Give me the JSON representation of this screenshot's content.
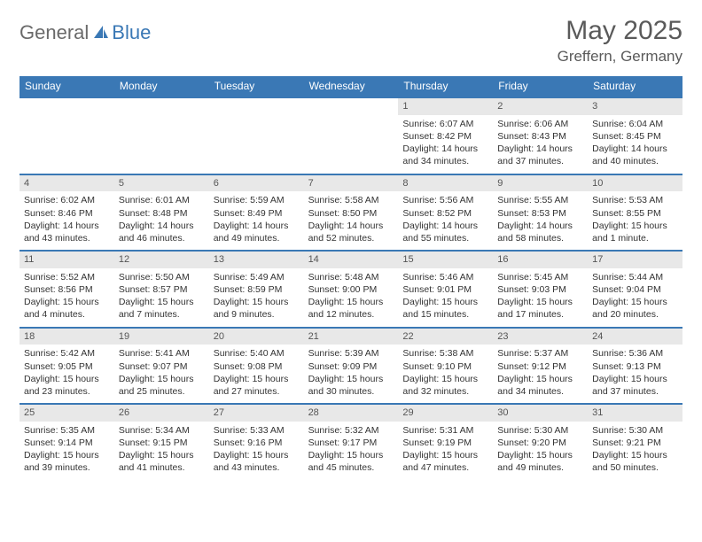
{
  "brand": {
    "part1": "General",
    "part2": "Blue"
  },
  "title": "May 2025",
  "location": "Greffern, Germany",
  "colors": {
    "header_bg": "#3a78b5",
    "header_text": "#ffffff",
    "daynum_bg": "#e8e8e8",
    "rule": "#3a78b5",
    "body_text": "#333333",
    "title_text": "#5a5a5a"
  },
  "typography": {
    "title_fontsize": 30,
    "location_fontsize": 17,
    "dayheader_fontsize": 12,
    "cell_fontsize": 10.5
  },
  "layout": {
    "columns": 7,
    "rows": 5
  },
  "day_names": [
    "Sunday",
    "Monday",
    "Tuesday",
    "Wednesday",
    "Thursday",
    "Friday",
    "Saturday"
  ],
  "weeks": [
    [
      null,
      null,
      null,
      null,
      {
        "n": "1",
        "sunrise": "Sunrise: 6:07 AM",
        "sunset": "Sunset: 8:42 PM",
        "daylight": "Daylight: 14 hours and 34 minutes."
      },
      {
        "n": "2",
        "sunrise": "Sunrise: 6:06 AM",
        "sunset": "Sunset: 8:43 PM",
        "daylight": "Daylight: 14 hours and 37 minutes."
      },
      {
        "n": "3",
        "sunrise": "Sunrise: 6:04 AM",
        "sunset": "Sunset: 8:45 PM",
        "daylight": "Daylight: 14 hours and 40 minutes."
      }
    ],
    [
      {
        "n": "4",
        "sunrise": "Sunrise: 6:02 AM",
        "sunset": "Sunset: 8:46 PM",
        "daylight": "Daylight: 14 hours and 43 minutes."
      },
      {
        "n": "5",
        "sunrise": "Sunrise: 6:01 AM",
        "sunset": "Sunset: 8:48 PM",
        "daylight": "Daylight: 14 hours and 46 minutes."
      },
      {
        "n": "6",
        "sunrise": "Sunrise: 5:59 AM",
        "sunset": "Sunset: 8:49 PM",
        "daylight": "Daylight: 14 hours and 49 minutes."
      },
      {
        "n": "7",
        "sunrise": "Sunrise: 5:58 AM",
        "sunset": "Sunset: 8:50 PM",
        "daylight": "Daylight: 14 hours and 52 minutes."
      },
      {
        "n": "8",
        "sunrise": "Sunrise: 5:56 AM",
        "sunset": "Sunset: 8:52 PM",
        "daylight": "Daylight: 14 hours and 55 minutes."
      },
      {
        "n": "9",
        "sunrise": "Sunrise: 5:55 AM",
        "sunset": "Sunset: 8:53 PM",
        "daylight": "Daylight: 14 hours and 58 minutes."
      },
      {
        "n": "10",
        "sunrise": "Sunrise: 5:53 AM",
        "sunset": "Sunset: 8:55 PM",
        "daylight": "Daylight: 15 hours and 1 minute."
      }
    ],
    [
      {
        "n": "11",
        "sunrise": "Sunrise: 5:52 AM",
        "sunset": "Sunset: 8:56 PM",
        "daylight": "Daylight: 15 hours and 4 minutes."
      },
      {
        "n": "12",
        "sunrise": "Sunrise: 5:50 AM",
        "sunset": "Sunset: 8:57 PM",
        "daylight": "Daylight: 15 hours and 7 minutes."
      },
      {
        "n": "13",
        "sunrise": "Sunrise: 5:49 AM",
        "sunset": "Sunset: 8:59 PM",
        "daylight": "Daylight: 15 hours and 9 minutes."
      },
      {
        "n": "14",
        "sunrise": "Sunrise: 5:48 AM",
        "sunset": "Sunset: 9:00 PM",
        "daylight": "Daylight: 15 hours and 12 minutes."
      },
      {
        "n": "15",
        "sunrise": "Sunrise: 5:46 AM",
        "sunset": "Sunset: 9:01 PM",
        "daylight": "Daylight: 15 hours and 15 minutes."
      },
      {
        "n": "16",
        "sunrise": "Sunrise: 5:45 AM",
        "sunset": "Sunset: 9:03 PM",
        "daylight": "Daylight: 15 hours and 17 minutes."
      },
      {
        "n": "17",
        "sunrise": "Sunrise: 5:44 AM",
        "sunset": "Sunset: 9:04 PM",
        "daylight": "Daylight: 15 hours and 20 minutes."
      }
    ],
    [
      {
        "n": "18",
        "sunrise": "Sunrise: 5:42 AM",
        "sunset": "Sunset: 9:05 PM",
        "daylight": "Daylight: 15 hours and 23 minutes."
      },
      {
        "n": "19",
        "sunrise": "Sunrise: 5:41 AM",
        "sunset": "Sunset: 9:07 PM",
        "daylight": "Daylight: 15 hours and 25 minutes."
      },
      {
        "n": "20",
        "sunrise": "Sunrise: 5:40 AM",
        "sunset": "Sunset: 9:08 PM",
        "daylight": "Daylight: 15 hours and 27 minutes."
      },
      {
        "n": "21",
        "sunrise": "Sunrise: 5:39 AM",
        "sunset": "Sunset: 9:09 PM",
        "daylight": "Daylight: 15 hours and 30 minutes."
      },
      {
        "n": "22",
        "sunrise": "Sunrise: 5:38 AM",
        "sunset": "Sunset: 9:10 PM",
        "daylight": "Daylight: 15 hours and 32 minutes."
      },
      {
        "n": "23",
        "sunrise": "Sunrise: 5:37 AM",
        "sunset": "Sunset: 9:12 PM",
        "daylight": "Daylight: 15 hours and 34 minutes."
      },
      {
        "n": "24",
        "sunrise": "Sunrise: 5:36 AM",
        "sunset": "Sunset: 9:13 PM",
        "daylight": "Daylight: 15 hours and 37 minutes."
      }
    ],
    [
      {
        "n": "25",
        "sunrise": "Sunrise: 5:35 AM",
        "sunset": "Sunset: 9:14 PM",
        "daylight": "Daylight: 15 hours and 39 minutes."
      },
      {
        "n": "26",
        "sunrise": "Sunrise: 5:34 AM",
        "sunset": "Sunset: 9:15 PM",
        "daylight": "Daylight: 15 hours and 41 minutes."
      },
      {
        "n": "27",
        "sunrise": "Sunrise: 5:33 AM",
        "sunset": "Sunset: 9:16 PM",
        "daylight": "Daylight: 15 hours and 43 minutes."
      },
      {
        "n": "28",
        "sunrise": "Sunrise: 5:32 AM",
        "sunset": "Sunset: 9:17 PM",
        "daylight": "Daylight: 15 hours and 45 minutes."
      },
      {
        "n": "29",
        "sunrise": "Sunrise: 5:31 AM",
        "sunset": "Sunset: 9:19 PM",
        "daylight": "Daylight: 15 hours and 47 minutes."
      },
      {
        "n": "30",
        "sunrise": "Sunrise: 5:30 AM",
        "sunset": "Sunset: 9:20 PM",
        "daylight": "Daylight: 15 hours and 49 minutes."
      },
      {
        "n": "31",
        "sunrise": "Sunrise: 5:30 AM",
        "sunset": "Sunset: 9:21 PM",
        "daylight": "Daylight: 15 hours and 50 minutes."
      }
    ]
  ]
}
